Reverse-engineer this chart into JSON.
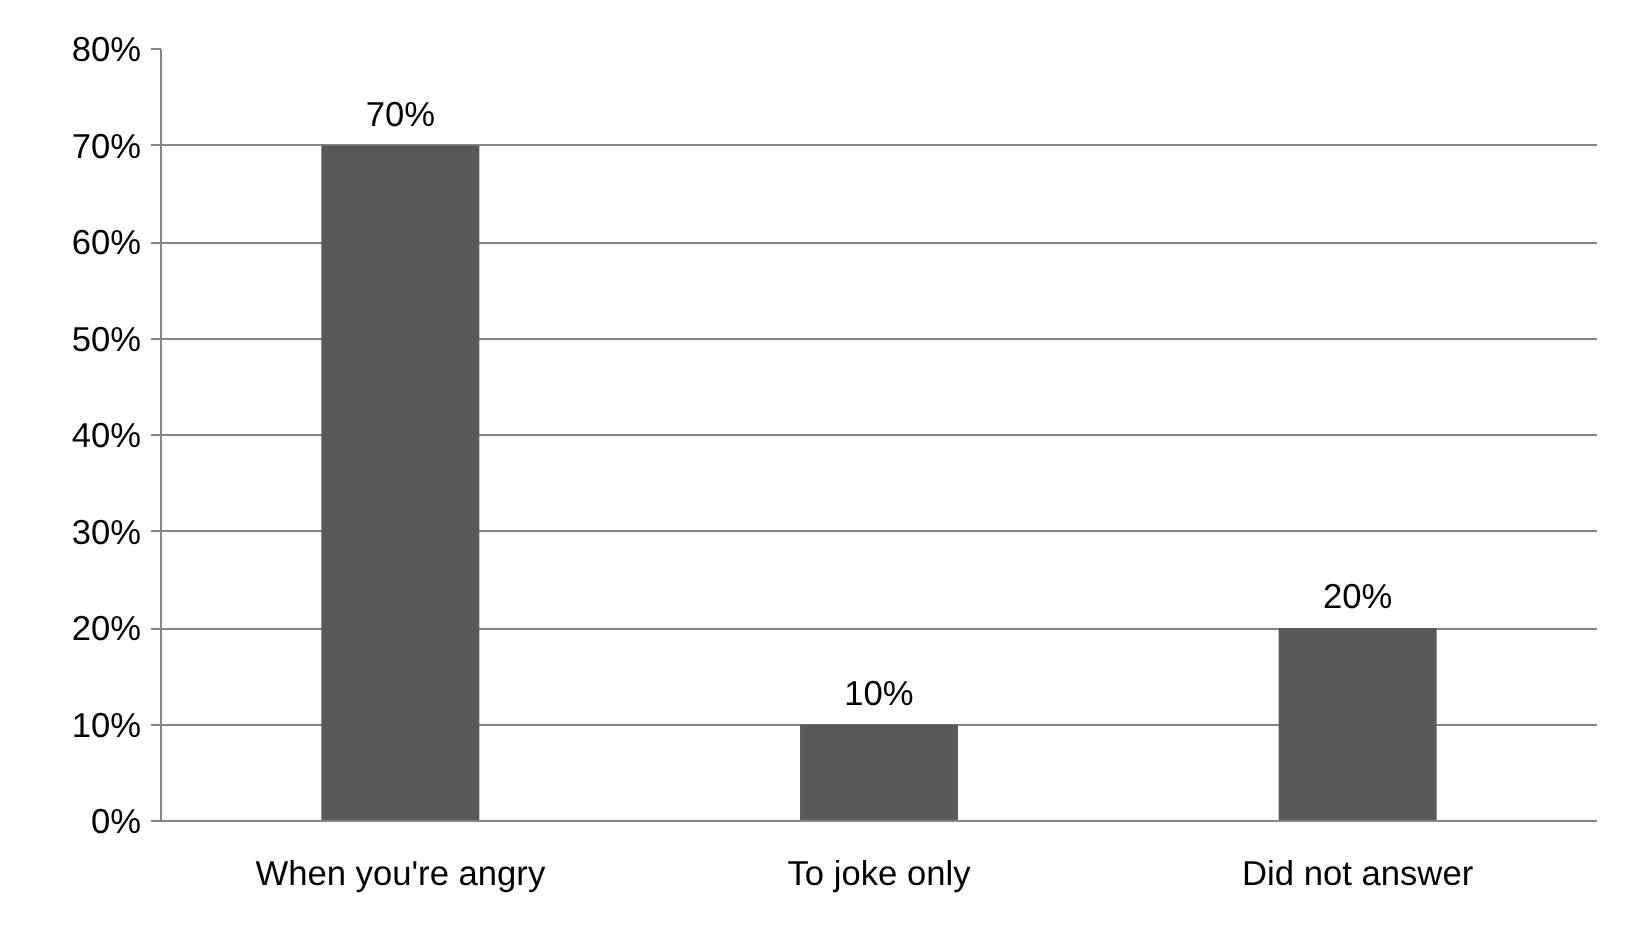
{
  "chart_data": {
    "type": "bar",
    "categories": [
      "When you're angry",
      "To joke only",
      "Did not answer"
    ],
    "values": [
      70,
      10,
      20
    ],
    "color": "#595959",
    "value_labels": [
      "70%",
      "10%",
      "20%"
    ],
    "ylim": [
      0,
      80
    ],
    "yticks": [
      {
        "value": 0,
        "label": "0%"
      },
      {
        "value": 10,
        "label": "10%"
      },
      {
        "value": 20,
        "label": "20%"
      },
      {
        "value": 30,
        "label": "30%"
      },
      {
        "value": 40,
        "label": "40%"
      },
      {
        "value": 50,
        "label": "50%"
      },
      {
        "value": 60,
        "label": "60%"
      },
      {
        "value": 70,
        "label": "70%"
      },
      {
        "value": 80,
        "label": "80%"
      }
    ],
    "grid": "y"
  }
}
